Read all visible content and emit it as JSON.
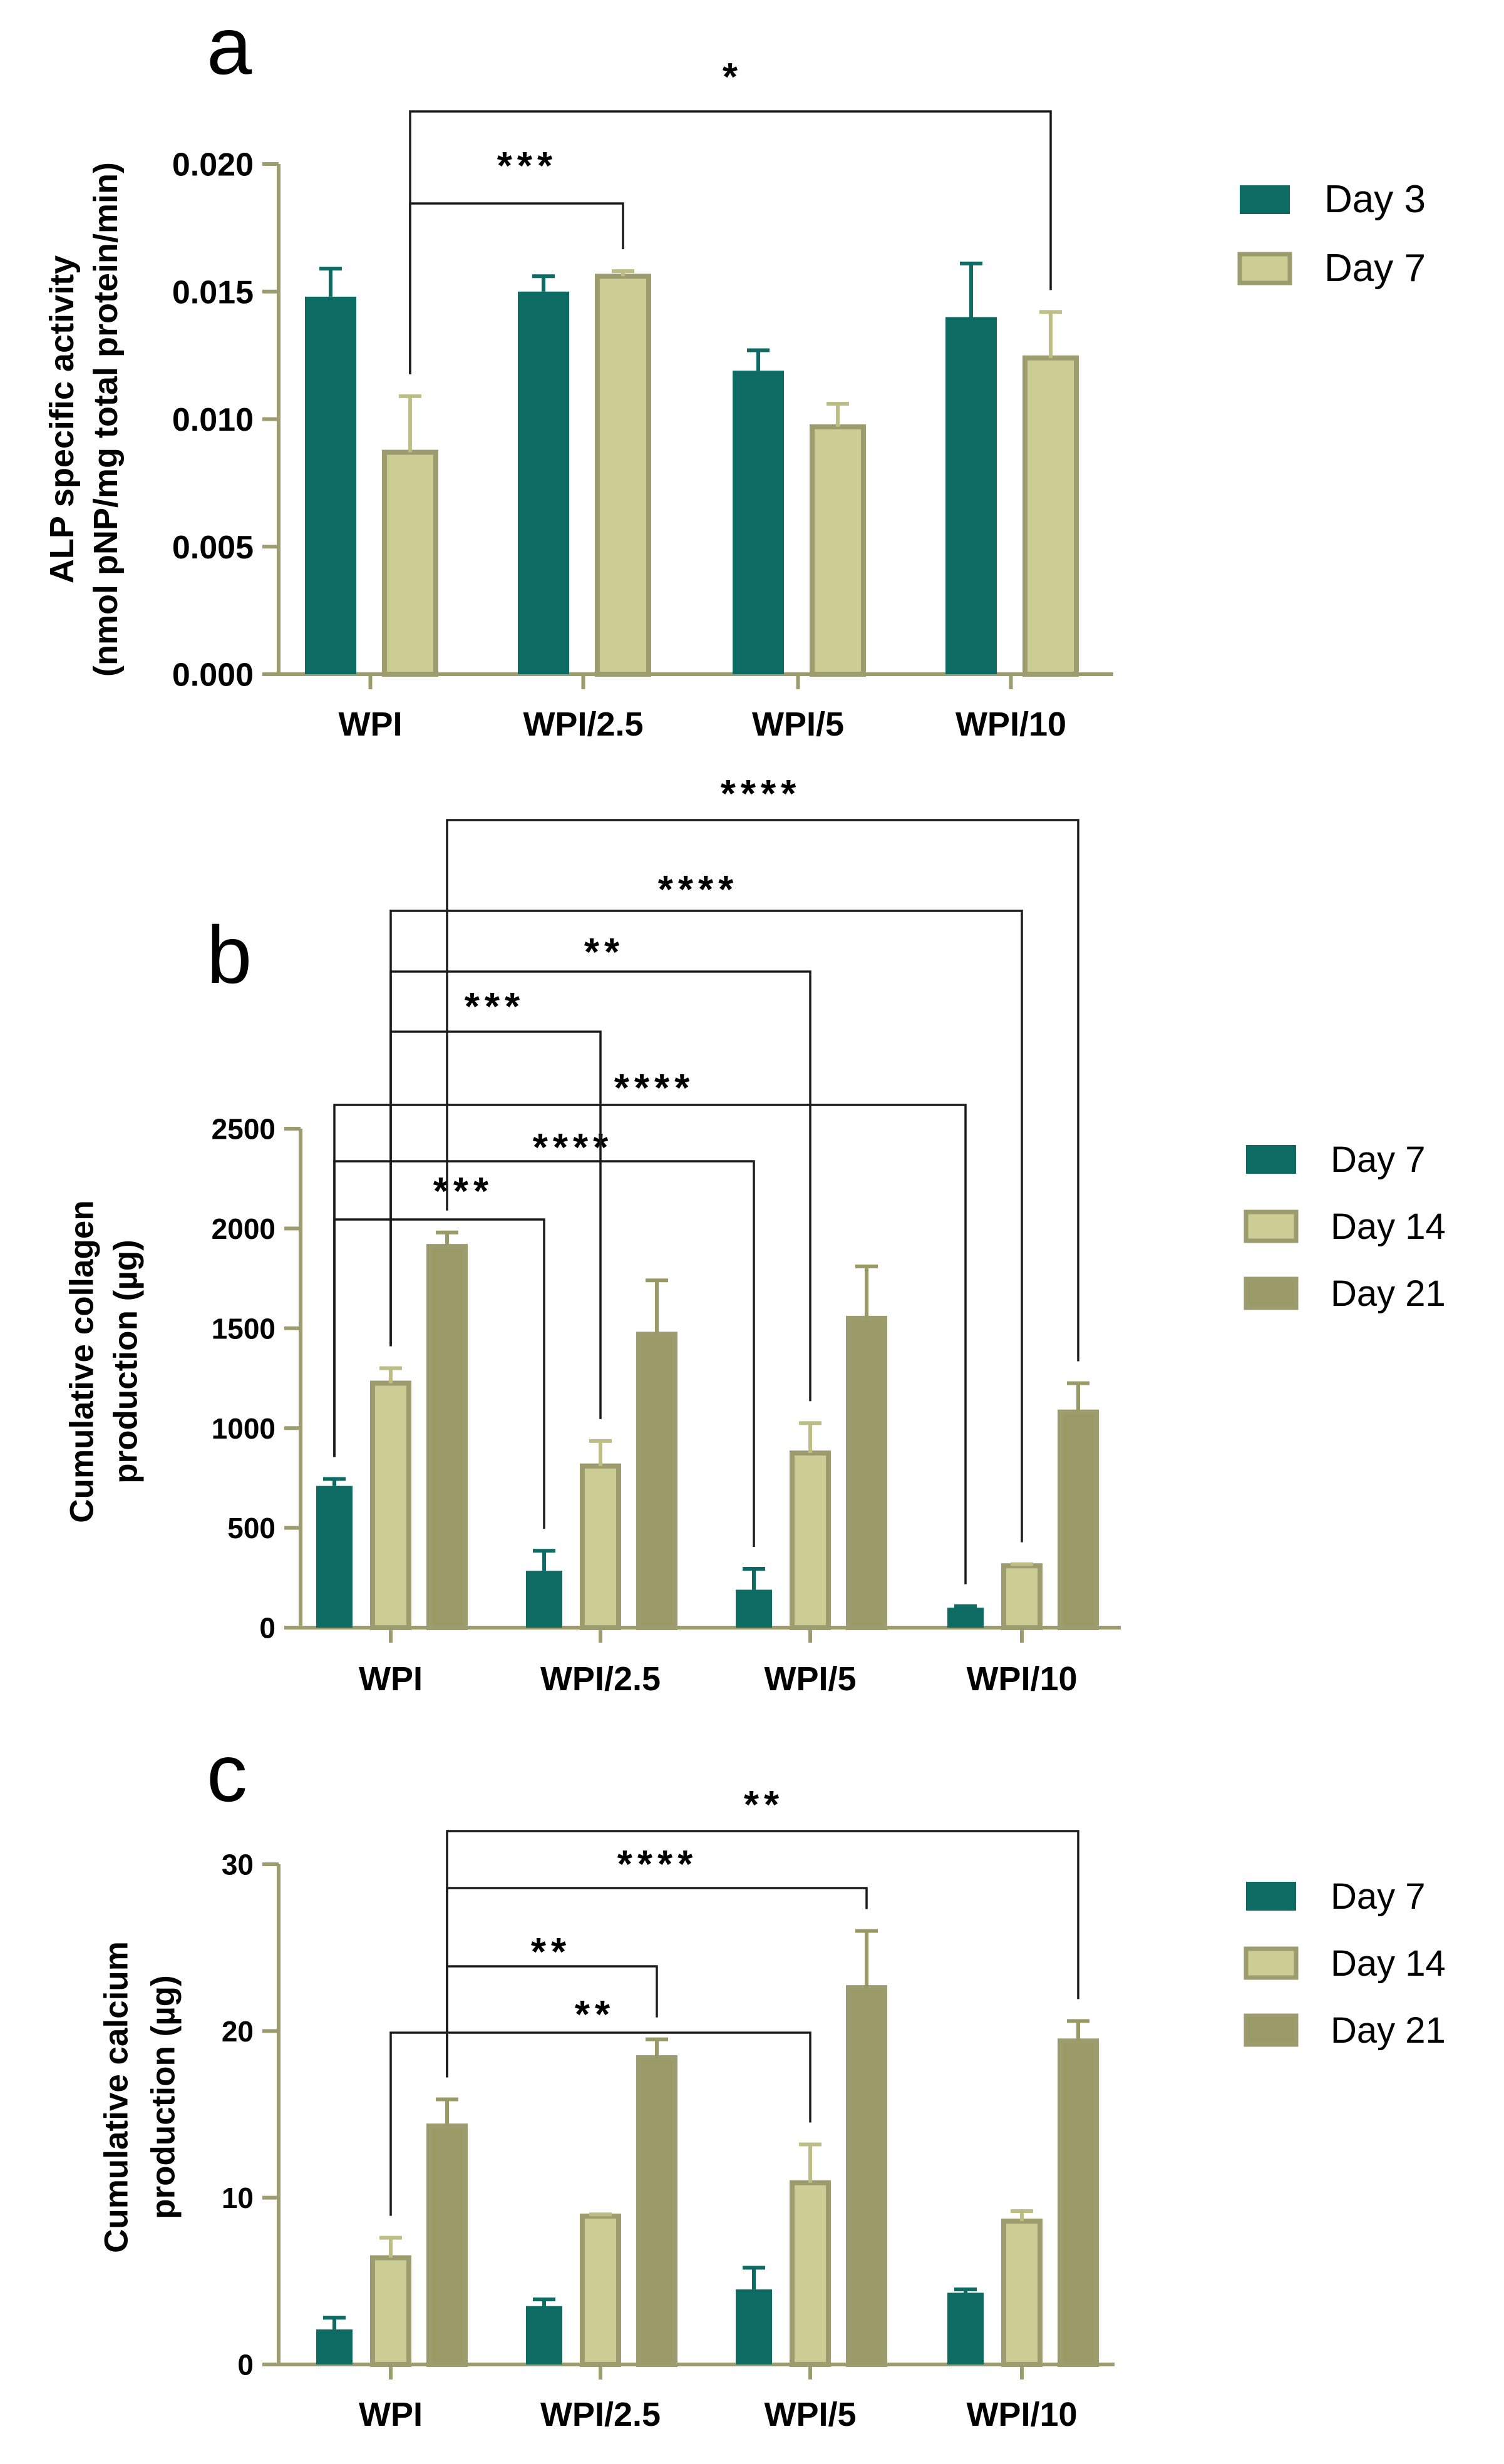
{
  "chart_data": [
    {
      "panel": "a",
      "type": "bar",
      "categories": [
        "WPI",
        "WPI/2.5",
        "WPI/5",
        "WPI/10"
      ],
      "ylabel": [
        "ALP specific activity",
        "(nmol pNP/mg total protein/min)"
      ],
      "xlabel": "",
      "ylim": [
        0,
        0.02
      ],
      "yticks": [
        0,
        0.005,
        0.01,
        0.015,
        0.02
      ],
      "ytick_labels": [
        "0.000",
        "0.005",
        "0.010",
        "0.015",
        "0.020"
      ],
      "series": [
        {
          "name": "Day 3",
          "color": "#0e6b63",
          "values": [
            0.0148,
            0.015,
            0.0119,
            0.014
          ],
          "errors": [
            0.0011,
            0.0006,
            0.0008,
            0.0021
          ]
        },
        {
          "name": "Day 7",
          "color": "#cccc95",
          "values": [
            0.0087,
            0.0156,
            0.0097,
            0.0124
          ],
          "errors": [
            0.0022,
            0.0002,
            0.0009,
            0.0018
          ]
        }
      ],
      "significance": [
        {
          "label": "***",
          "from": [
            0,
            1
          ],
          "to": [
            1,
            1
          ]
        },
        {
          "label": "*",
          "from": [
            0,
            1
          ],
          "to": [
            3,
            1
          ]
        }
      ]
    },
    {
      "panel": "b",
      "type": "bar",
      "categories": [
        "WPI",
        "WPI/2.5",
        "WPI/5",
        "WPI/10"
      ],
      "ylabel": [
        "Cumulative collagen",
        "production (µg)"
      ],
      "xlabel": "",
      "ylim": [
        0,
        2500
      ],
      "yticks": [
        0,
        500,
        1000,
        1500,
        2000,
        2500
      ],
      "ytick_labels": [
        "0",
        "500",
        "1000",
        "1500",
        "2000",
        "2500"
      ],
      "series": [
        {
          "name": "Day 7",
          "color": "#0e6b63",
          "values": [
            710,
            285,
            190,
            100
          ],
          "errors": [
            35,
            100,
            105,
            8
          ]
        },
        {
          "name": "Day 14",
          "color": "#cccc95",
          "values": [
            1225,
            810,
            875,
            310
          ],
          "errors": [
            75,
            125,
            150,
            8
          ]
        },
        {
          "name": "Day 21",
          "color": "#9a9a66",
          "values": [
            1910,
            1470,
            1550,
            1080
          ],
          "errors": [
            70,
            270,
            260,
            145
          ]
        }
      ],
      "significance": [
        {
          "label": "***",
          "from": [
            0,
            0
          ],
          "to": [
            1,
            0
          ]
        },
        {
          "label": "****",
          "from": [
            0,
            0
          ],
          "to": [
            2,
            0
          ]
        },
        {
          "label": "****",
          "from": [
            0,
            0
          ],
          "to": [
            3,
            0
          ]
        },
        {
          "label": "***",
          "from": [
            0,
            1
          ],
          "to": [
            1,
            1
          ]
        },
        {
          "label": "**",
          "from": [
            0,
            1
          ],
          "to": [
            2,
            1
          ]
        },
        {
          "label": "****",
          "from": [
            0,
            1
          ],
          "to": [
            3,
            1
          ]
        },
        {
          "label": "****",
          "from": [
            0,
            2
          ],
          "to": [
            3,
            2
          ]
        }
      ]
    },
    {
      "panel": "c",
      "type": "bar",
      "categories": [
        "WPI",
        "WPI/2.5",
        "WPI/5",
        "WPI/10"
      ],
      "ylabel": [
        "Cumulative calcium",
        "production (µg)"
      ],
      "xlabel": "",
      "ylim": [
        0,
        30
      ],
      "yticks": [
        0,
        10,
        20,
        30
      ],
      "ytick_labels": [
        "0",
        "10",
        "20",
        "30"
      ],
      "series": [
        {
          "name": "Day 7",
          "color": "#0e6b63",
          "values": [
            2.1,
            3.5,
            4.5,
            4.3
          ],
          "errors": [
            0.7,
            0.4,
            1.3,
            0.2
          ]
        },
        {
          "name": "Day 14",
          "color": "#cccc95",
          "values": [
            6.4,
            8.9,
            10.9,
            8.6
          ],
          "errors": [
            1.2,
            0.1,
            2.3,
            0.6
          ]
        },
        {
          "name": "Day 21",
          "color": "#9a9a66",
          "values": [
            14.3,
            18.4,
            22.6,
            19.4
          ],
          "errors": [
            1.6,
            1.1,
            3.4,
            1.2
          ]
        }
      ],
      "significance": [
        {
          "label": "**",
          "from": [
            0,
            1
          ],
          "to": [
            2,
            1
          ]
        },
        {
          "label": "**",
          "from": [
            0,
            2
          ],
          "to": [
            1,
            2
          ]
        },
        {
          "label": "****",
          "from": [
            0,
            2
          ],
          "to": [
            2,
            2
          ]
        },
        {
          "label": "**",
          "from": [
            0,
            2
          ],
          "to": [
            3,
            2
          ]
        }
      ]
    }
  ]
}
